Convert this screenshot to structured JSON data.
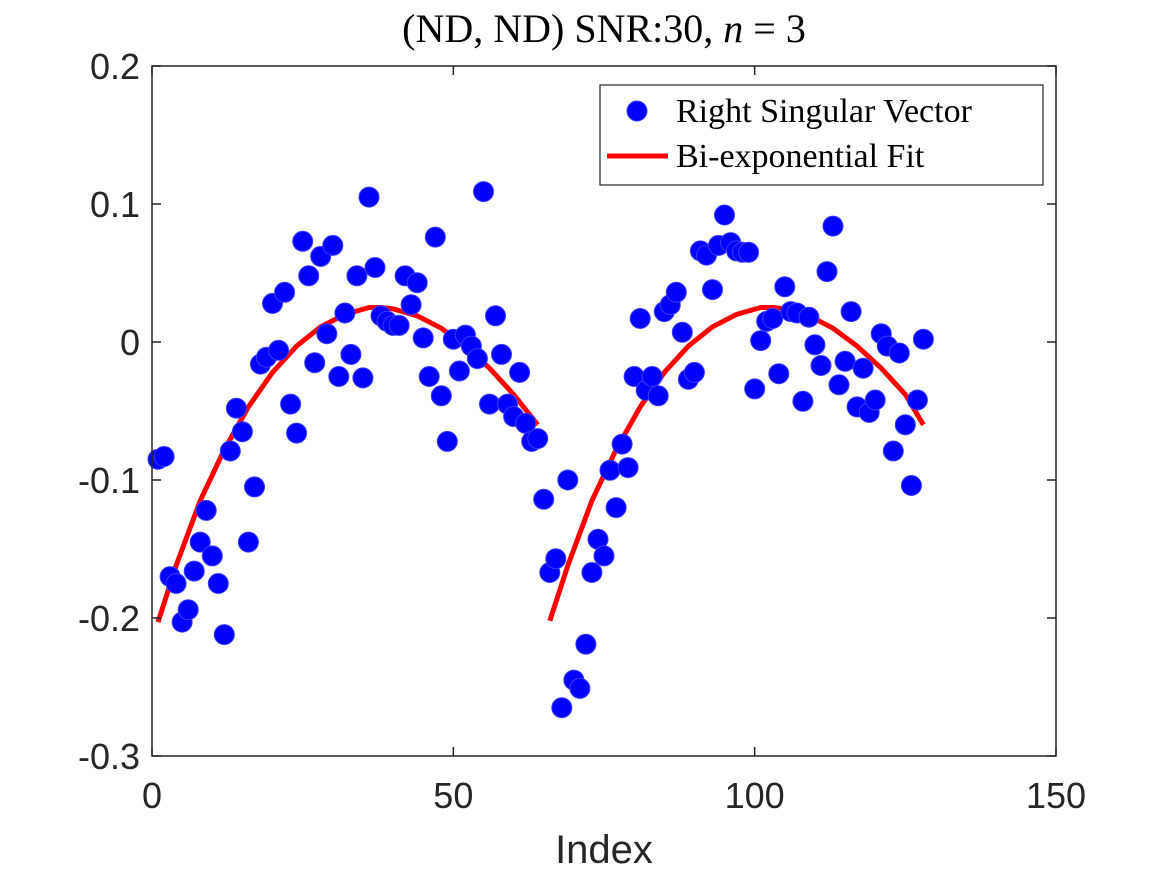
{
  "chart_data": {
    "type": "scatter",
    "title": "(ND, ND) SNR:30, n = 3",
    "title_parts": {
      "prefix": "(ND, ND) SNR:30, ",
      "var": "n",
      "suffix": " = 3"
    },
    "xlabel": "Index",
    "ylabel": "",
    "xlim": [
      0,
      150
    ],
    "ylim": [
      -0.3,
      0.2
    ],
    "xticks": [
      0,
      50,
      100,
      150
    ],
    "xtick_labels": [
      "0",
      "50",
      "100",
      "150"
    ],
    "yticks": [
      -0.3,
      -0.2,
      -0.1,
      0,
      0.1,
      0.2
    ],
    "ytick_labels": [
      "-0.3",
      "-0.2",
      "-0.1",
      "0",
      "0.1",
      "0.2"
    ],
    "grid": false,
    "legend_position": "top-right",
    "series": [
      {
        "name": "Right Singular Vector",
        "kind": "scatter",
        "color": "#0000ff",
        "x": [
          1,
          2,
          3,
          4,
          5,
          6,
          7,
          8,
          9,
          10,
          11,
          12,
          13,
          14,
          15,
          16,
          17,
          18,
          19,
          20,
          21,
          22,
          23,
          24,
          25,
          26,
          27,
          28,
          29,
          30,
          31,
          32,
          33,
          34,
          35,
          36,
          37,
          38,
          39,
          40,
          41,
          42,
          43,
          44,
          45,
          46,
          47,
          48,
          49,
          50,
          51,
          52,
          53,
          54,
          55,
          56,
          57,
          58,
          59,
          60,
          61,
          62,
          63,
          64,
          65,
          66,
          67,
          68,
          69,
          70,
          71,
          72,
          73,
          74,
          75,
          76,
          77,
          78,
          79,
          80,
          81,
          82,
          83,
          84,
          85,
          86,
          87,
          88,
          89,
          90,
          91,
          92,
          93,
          94,
          95,
          96,
          97,
          98,
          99,
          100,
          101,
          102,
          103,
          104,
          105,
          106,
          107,
          108,
          109,
          110,
          111,
          112,
          113,
          114,
          115,
          116,
          117,
          118,
          119,
          120,
          121,
          122,
          123,
          124,
          125,
          126,
          127,
          128
        ],
        "y": [
          -0.085,
          -0.083,
          -0.17,
          -0.175,
          -0.203,
          -0.194,
          -0.166,
          -0.145,
          -0.122,
          -0.155,
          -0.175,
          -0.212,
          -0.079,
          -0.048,
          -0.065,
          -0.145,
          -0.105,
          -0.016,
          -0.011,
          0.028,
          -0.006,
          0.036,
          -0.045,
          -0.066,
          0.073,
          0.048,
          -0.015,
          0.062,
          0.006,
          0.07,
          -0.025,
          0.021,
          -0.009,
          0.048,
          -0.026,
          0.105,
          0.054,
          0.019,
          0.015,
          0.012,
          0.012,
          0.048,
          0.027,
          0.043,
          0.003,
          -0.025,
          0.076,
          -0.039,
          -0.072,
          0.002,
          -0.021,
          0.005,
          -0.003,
          -0.012,
          0.109,
          -0.045,
          0.019,
          -0.009,
          -0.045,
          -0.054,
          -0.022,
          -0.059,
          -0.072,
          -0.07,
          -0.114,
          -0.167,
          -0.157,
          -0.265,
          -0.1,
          -0.245,
          -0.251,
          -0.219,
          -0.167,
          -0.143,
          -0.155,
          -0.093,
          -0.12,
          -0.074,
          -0.091,
          -0.025,
          0.017,
          -0.035,
          -0.025,
          -0.039,
          0.022,
          0.027,
          0.036,
          0.007,
          -0.027,
          -0.022,
          0.066,
          0.063,
          0.038,
          0.07,
          0.092,
          0.072,
          0.066,
          0.065,
          0.065,
          -0.034,
          0.001,
          0.015,
          0.017,
          -0.023,
          0.04,
          0.022,
          0.021,
          -0.043,
          0.018,
          -0.002,
          -0.017,
          0.051,
          0.084,
          -0.031,
          -0.014,
          0.022,
          -0.047,
          -0.019,
          -0.051,
          -0.042,
          0.006,
          -0.003,
          -0.079,
          -0.008,
          -0.06,
          -0.104,
          -0.042,
          0.002
        ]
      },
      {
        "name": "Bi-exponential Fit",
        "kind": "line",
        "color": "#ff0000",
        "x": [
          1,
          4,
          8,
          12,
          16,
          20,
          24,
          28,
          32,
          36,
          38,
          40,
          44,
          48,
          52,
          56,
          60,
          64,
          null,
          66,
          69,
          73,
          77,
          81,
          85,
          89,
          93,
          97,
          101,
          103,
          105,
          109,
          113,
          117,
          121,
          125,
          128
        ],
        "y": [
          -0.203,
          -0.162,
          -0.115,
          -0.078,
          -0.047,
          -0.022,
          -0.003,
          0.011,
          0.02,
          0.025,
          0.025,
          0.024,
          0.019,
          0.01,
          -0.003,
          -0.019,
          -0.038,
          -0.06,
          null,
          -0.202,
          -0.162,
          -0.115,
          -0.078,
          -0.047,
          -0.022,
          -0.003,
          0.011,
          0.02,
          0.025,
          0.025,
          0.024,
          0.019,
          0.01,
          -0.003,
          -0.019,
          -0.038,
          -0.06
        ]
      }
    ]
  }
}
